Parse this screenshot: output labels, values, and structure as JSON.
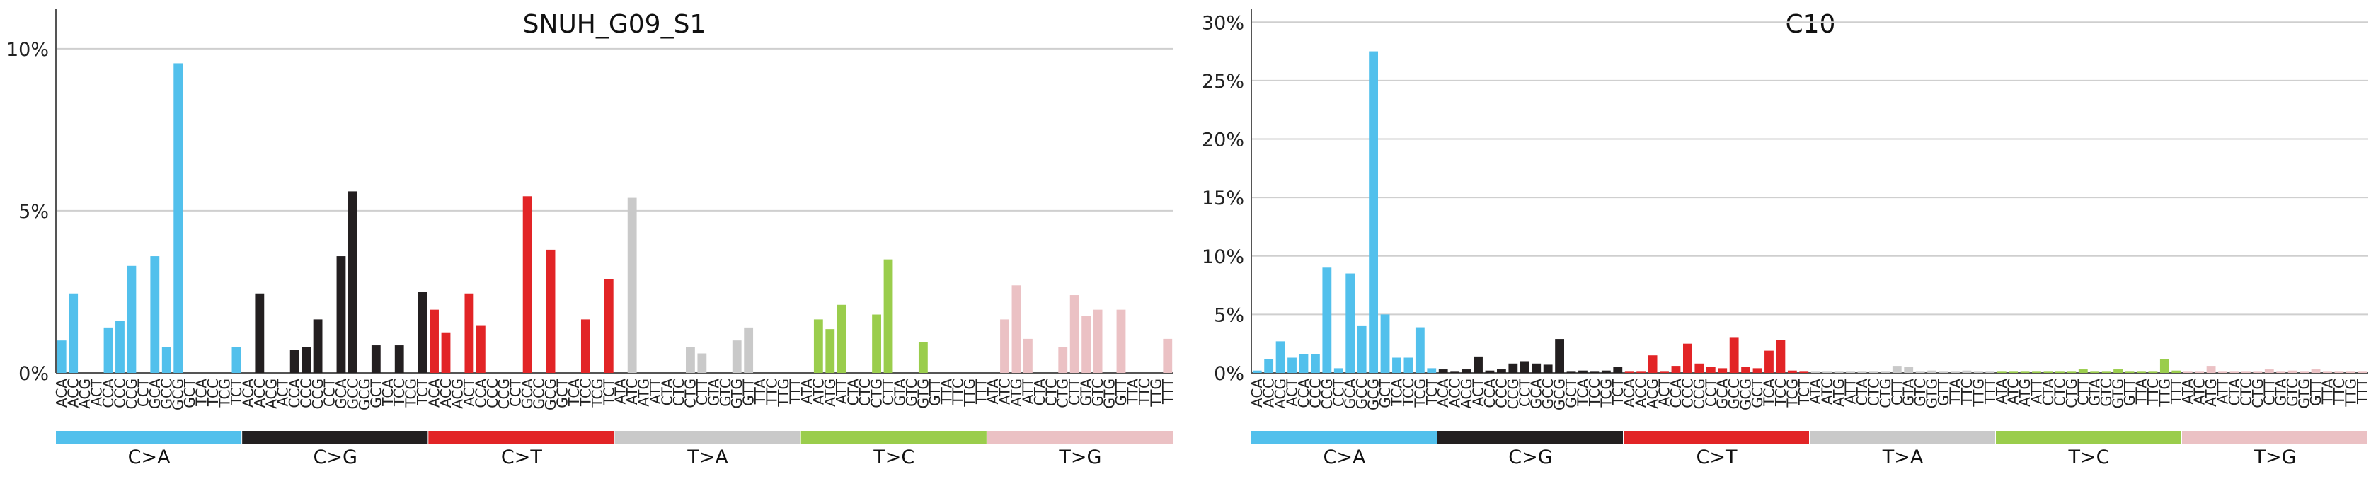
{
  "colors": {
    "C>A": "#52c0ec",
    "C>G": "#231f20",
    "C>T": "#e22426",
    "T>A": "#c9c9c9",
    "T>C": "#9acd4c",
    "T>G": "#ebc1c4",
    "grid": "#cfcfcf",
    "axis": "#555555"
  },
  "chart_data": [
    {
      "type": "bar",
      "title": "SNUH_G09_S1",
      "ylim": [
        0,
        11
      ],
      "yticks": [
        "0%",
        "5%",
        "10%"
      ],
      "ytick_values": [
        0,
        5,
        10
      ],
      "grid": true,
      "mutation_types": [
        "C>A",
        "C>G",
        "C>T",
        "T>A",
        "T>C",
        "T>G"
      ],
      "categories": [
        "ACA",
        "ACC",
        "ACG",
        "ACT",
        "CCA",
        "CCC",
        "CCG",
        "CCT",
        "GCA",
        "GCC",
        "GCG",
        "GCT",
        "TCA",
        "TCC",
        "TCG",
        "TCT",
        "ACA",
        "ACC",
        "ACG",
        "ACT",
        "CCA",
        "CCC",
        "CCG",
        "CCT",
        "GCA",
        "GCC",
        "GCG",
        "GCT",
        "TCA",
        "TCC",
        "TCG",
        "TCT",
        "ACA",
        "ACC",
        "ACG",
        "ACT",
        "CCA",
        "CCC",
        "CCG",
        "CCT",
        "GCA",
        "GCC",
        "GCG",
        "GCT",
        "TCA",
        "TCC",
        "TCG",
        "TCT",
        "ATA",
        "ATC",
        "ATG",
        "ATT",
        "CTA",
        "CTC",
        "CTG",
        "CTT",
        "GTA",
        "GTC",
        "GTG",
        "GTT",
        "TTA",
        "TTC",
        "TTG",
        "TTT",
        "ATA",
        "ATC",
        "ATG",
        "ATT",
        "CTA",
        "CTC",
        "CTG",
        "CTT",
        "GTA",
        "GTC",
        "GTG",
        "GTT",
        "TTA",
        "TTC",
        "TTG",
        "TTT",
        "ATA",
        "ATC",
        "ATG",
        "ATT",
        "CTA",
        "CTC",
        "CTG",
        "CTT",
        "GTA",
        "GTC",
        "GTG",
        "GTT",
        "TTA",
        "TTC",
        "TTG",
        "TTT"
      ],
      "values": [
        1.0,
        2.45,
        0,
        0,
        1.4,
        1.6,
        3.3,
        0,
        3.6,
        0.8,
        9.55,
        0,
        0,
        0,
        0,
        0.8,
        0,
        2.45,
        0,
        0,
        0.7,
        0.8,
        1.65,
        0,
        3.6,
        5.6,
        0,
        0.85,
        0,
        0.85,
        0,
        2.5,
        1.95,
        1.25,
        0,
        2.45,
        1.45,
        0,
        0,
        0,
        5.45,
        0,
        3.8,
        0,
        0,
        1.65,
        0,
        2.9,
        0,
        5.4,
        0,
        0,
        0,
        0,
        0.8,
        0.6,
        0,
        0,
        1.0,
        1.4,
        0,
        0,
        0,
        0,
        0,
        1.65,
        1.35,
        2.1,
        0,
        0,
        1.8,
        3.5,
        0,
        0,
        0.95,
        0,
        0,
        0,
        0,
        0,
        0,
        1.65,
        2.7,
        1.05,
        0,
        0,
        0.8,
        2.4,
        1.75,
        1.95,
        0,
        1.95,
        0,
        0,
        0,
        1.05
      ]
    },
    {
      "type": "bar",
      "title": "C10",
      "ylim": [
        0,
        30.5
      ],
      "yticks": [
        "0%",
        "5%",
        "10%",
        "15%",
        "20%",
        "25%",
        "30%"
      ],
      "ytick_values": [
        0,
        5,
        10,
        15,
        20,
        25,
        30
      ],
      "grid": true,
      "mutation_types": [
        "C>A",
        "C>G",
        "C>T",
        "T>A",
        "T>C",
        "T>G"
      ],
      "categories": [
        "ACA",
        "ACC",
        "ACG",
        "ACT",
        "CCA",
        "CCC",
        "CCG",
        "CCT",
        "GCA",
        "GCC",
        "GCG",
        "GCT",
        "TCA",
        "TCC",
        "TCG",
        "TCT",
        "ACA",
        "ACC",
        "ACG",
        "ACT",
        "CCA",
        "CCC",
        "CCG",
        "CCT",
        "GCA",
        "GCC",
        "GCG",
        "GCT",
        "TCA",
        "TCC",
        "TCG",
        "TCT",
        "ACA",
        "ACC",
        "ACG",
        "ACT",
        "CCA",
        "CCC",
        "CCG",
        "CCT",
        "GCA",
        "GCC",
        "GCG",
        "GCT",
        "TCA",
        "TCC",
        "TCG",
        "TCT",
        "ATA",
        "ATC",
        "ATG",
        "ATT",
        "CTA",
        "CTC",
        "CTG",
        "CTT",
        "GTA",
        "GTC",
        "GTG",
        "GTT",
        "TTA",
        "TTC",
        "TTG",
        "TTT",
        "ATA",
        "ATC",
        "ATG",
        "ATT",
        "CTA",
        "CTC",
        "CTG",
        "CTT",
        "GTA",
        "GTC",
        "GTG",
        "GTT",
        "TTA",
        "TTC",
        "TTG",
        "TTT",
        "ATA",
        "ATC",
        "ATG",
        "ATT",
        "CTA",
        "CTC",
        "CTG",
        "CTT",
        "GTA",
        "GTC",
        "GTG",
        "GTT",
        "TTA",
        "TTC",
        "TTG",
        "TTT"
      ],
      "values": [
        0.2,
        1.2,
        2.7,
        1.3,
        1.6,
        1.6,
        9.0,
        0.4,
        8.5,
        4.0,
        27.5,
        5.0,
        1.3,
        1.3,
        3.9,
        0.4,
        0.3,
        0.1,
        0.3,
        1.4,
        0.2,
        0.3,
        0.8,
        1.0,
        0.8,
        0.7,
        2.9,
        0.1,
        0.2,
        0.1,
        0.2,
        0.5,
        0.1,
        0.1,
        1.5,
        0.1,
        0.6,
        2.5,
        0.8,
        0.5,
        0.4,
        3.0,
        0.5,
        0.4,
        1.9,
        2.8,
        0.2,
        0.1,
        0.1,
        0.1,
        0.1,
        0.1,
        0.1,
        0.1,
        0.1,
        0.6,
        0.5,
        0.1,
        0.2,
        0.1,
        0.1,
        0.2,
        0.1,
        0.1,
        0.1,
        0.1,
        0.1,
        0.1,
        0.1,
        0.1,
        0.1,
        0.3,
        0.1,
        0.1,
        0.3,
        0.1,
        0.1,
        0.1,
        1.2,
        0.2,
        0.1,
        0.1,
        0.6,
        0.1,
        0.1,
        0.1,
        0.1,
        0.3,
        0.1,
        0.2,
        0.1,
        0.3,
        0.1,
        0.1,
        0.1,
        0.1
      ]
    }
  ]
}
